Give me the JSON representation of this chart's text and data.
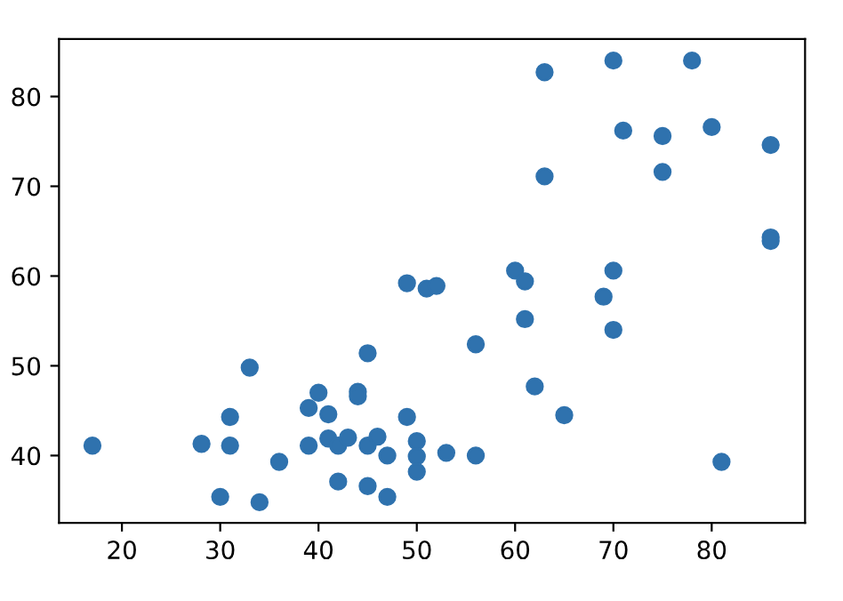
{
  "chart_data": {
    "type": "scatter",
    "marker": "circle",
    "grid": false,
    "xlim": [
      13.6,
      89.5
    ],
    "xticks": [
      20,
      30,
      40,
      50,
      60,
      70,
      80
    ],
    "ylim": [
      32.5,
      86.4
    ],
    "yticks": [
      40,
      50,
      60,
      70,
      80
    ],
    "series": [
      {
        "color": "#2f72ae",
        "x": [
          17,
          28.1,
          30,
          31,
          31,
          33,
          34,
          36,
          39,
          39,
          40,
          41,
          41,
          42,
          42,
          43,
          44,
          44,
          45,
          45,
          45,
          46,
          47,
          47,
          49,
          49,
          50,
          50,
          50,
          51,
          52,
          53,
          56,
          56,
          60,
          61,
          61,
          62,
          63,
          63,
          65,
          69,
          70,
          70,
          70,
          71,
          75,
          75,
          78,
          80,
          81,
          86,
          86,
          86
        ],
        "values": [
          41.1,
          41.3,
          35.4,
          44.3,
          41.1,
          49.8,
          34.8,
          39.3,
          45.3,
          41.1,
          47,
          44.6,
          41.9,
          41.1,
          37.1,
          42,
          47.1,
          46.6,
          51.4,
          41.1,
          36.6,
          42.1,
          40,
          35.4,
          59.2,
          44.3,
          41.6,
          39.9,
          38.2,
          58.6,
          58.9,
          40.3,
          52.4,
          40,
          60.6,
          59.4,
          55.2,
          47.7,
          82.7,
          71.1,
          44.5,
          57.7,
          84,
          60.6,
          54,
          76.2,
          75.6,
          71.6,
          84,
          76.6,
          39.3,
          74.6,
          64.3,
          63.9
        ]
      }
    ]
  }
}
